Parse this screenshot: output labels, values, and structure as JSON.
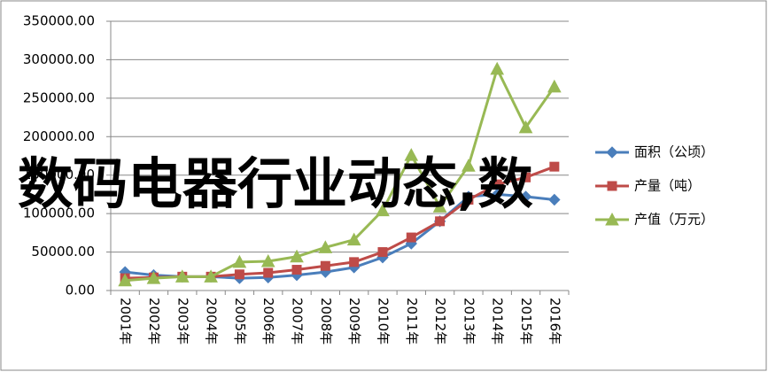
{
  "chart_data": {
    "type": "line",
    "categories": [
      "2001年",
      "2002年",
      "2003年",
      "2004年",
      "2005年",
      "2006年",
      "2007年",
      "2008年",
      "2009年",
      "2010年",
      "2011年",
      "2012年",
      "2013年",
      "2014年",
      "2015年",
      "2016年"
    ],
    "series": [
      {
        "name": "面积（公顷）",
        "color": "#4a7ebb",
        "marker": "diamond",
        "values": [
          24000,
          20000,
          18000,
          18000,
          16000,
          17000,
          20000,
          24000,
          30000,
          43000,
          61000,
          90000,
          122000,
          125000,
          122000,
          118000
        ]
      },
      {
        "name": "产量（吨）",
        "color": "#be4b48",
        "marker": "square",
        "values": [
          16000,
          17000,
          18000,
          18000,
          21000,
          23000,
          27000,
          32000,
          37000,
          50000,
          69000,
          90000,
          118000,
          138000,
          147000,
          161000
        ]
      },
      {
        "name": "产值（万元）",
        "color": "#98b954",
        "marker": "triangle",
        "values": [
          13000,
          16000,
          18000,
          18000,
          37000,
          38000,
          44000,
          56000,
          66000,
          104000,
          176000,
          109000,
          162000,
          288000,
          212000,
          265000
        ]
      }
    ],
    "ylim": [
      0,
      350000
    ],
    "yticks": [
      {
        "value": 0,
        "label": "0.00"
      },
      {
        "value": 50000,
        "label": "50000.00"
      },
      {
        "value": 100000,
        "label": "100000.00"
      },
      {
        "value": 150000,
        "label": "150000.00"
      },
      {
        "value": 200000,
        "label": "200000.00"
      },
      {
        "value": 250000,
        "label": "250000.00"
      },
      {
        "value": 300000,
        "label": "300000.00"
      },
      {
        "value": 350000,
        "label": "350000.00"
      }
    ],
    "grid": true,
    "legend": "right"
  },
  "overlay_text": "数码电器行业动态,数"
}
